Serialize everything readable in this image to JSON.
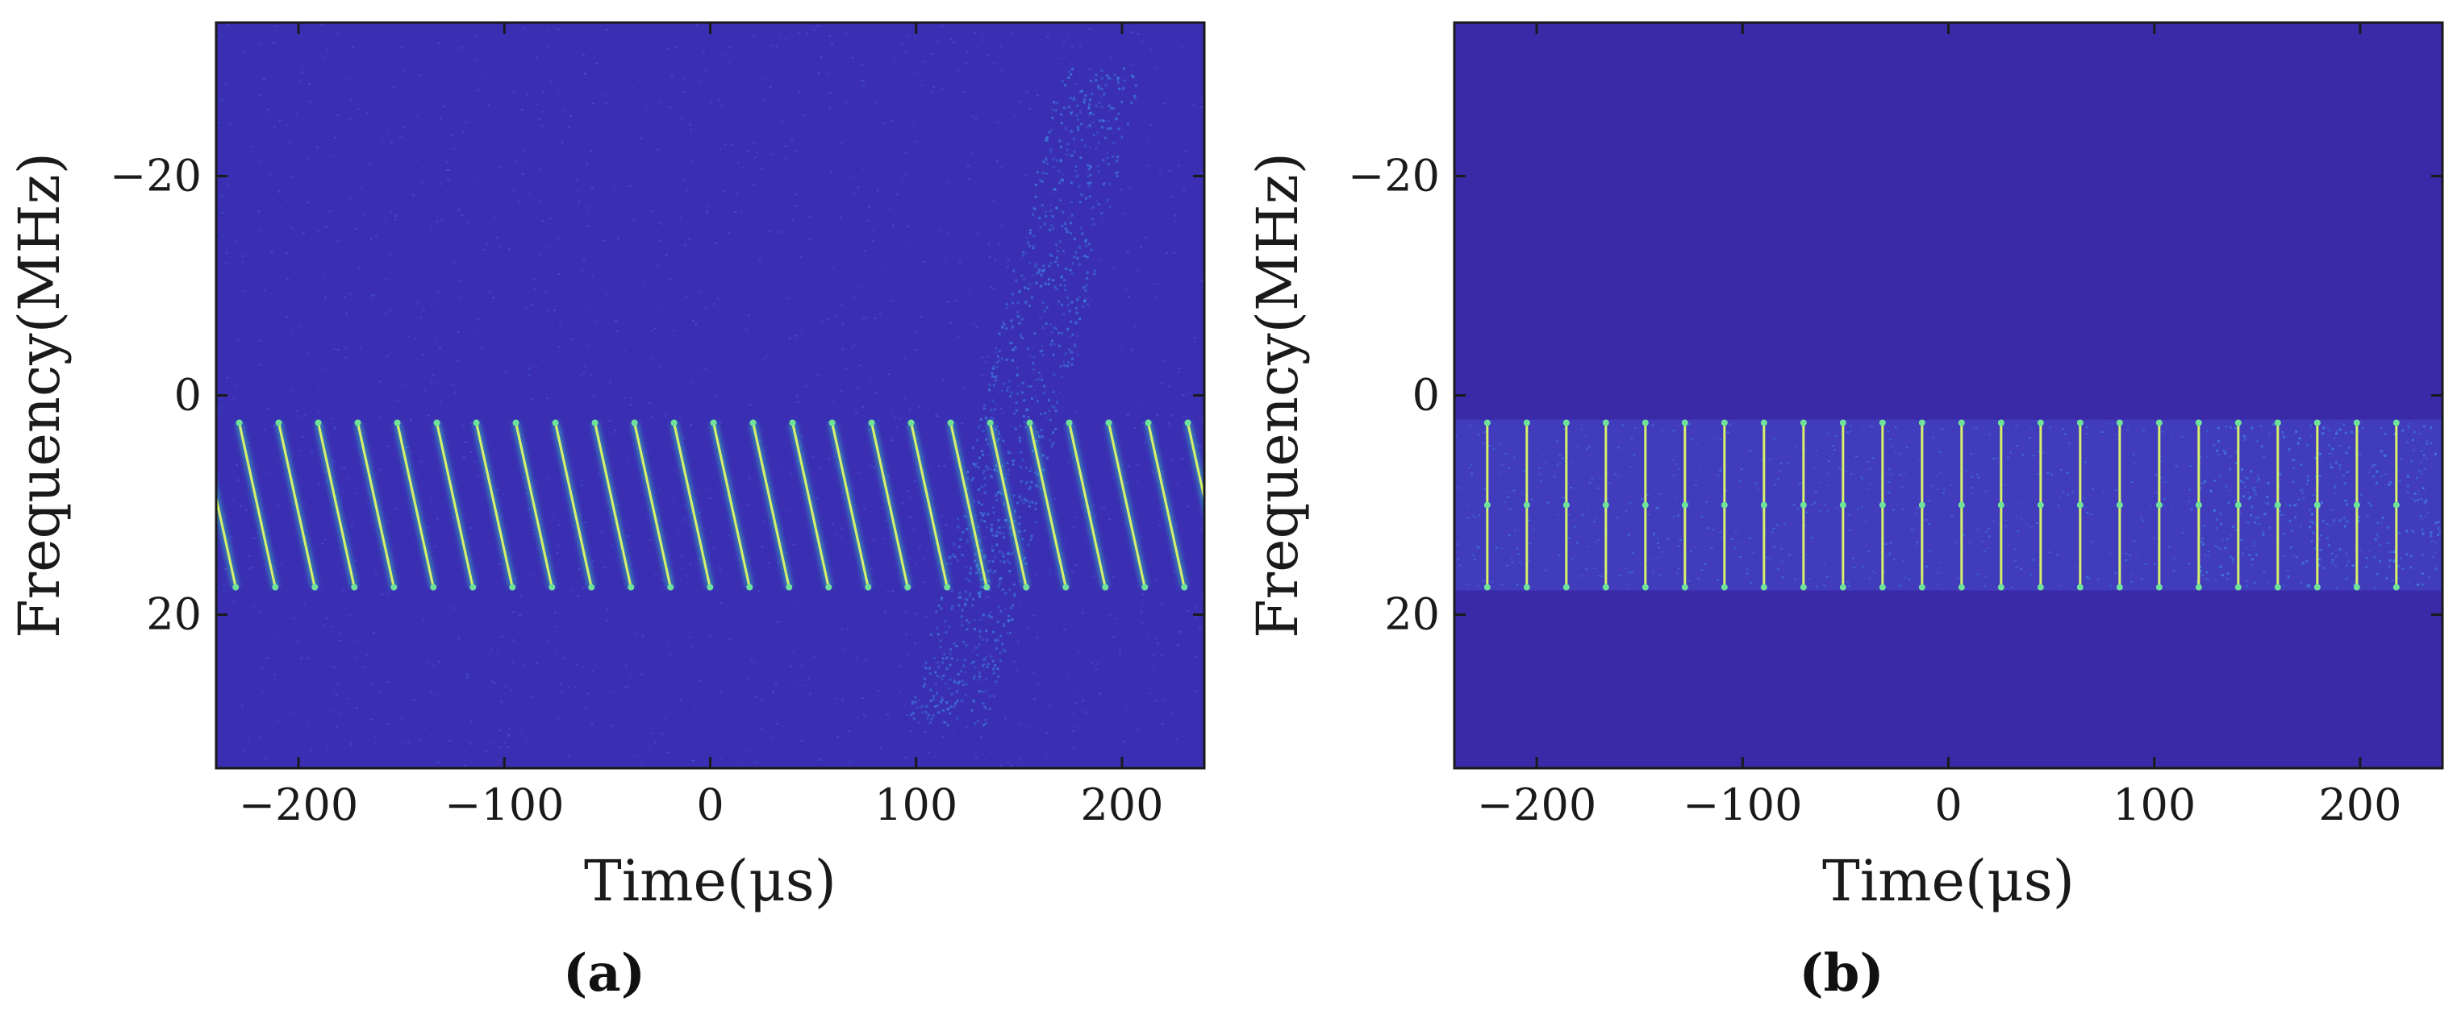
{
  "figure": {
    "panel_labels": [
      "(a)",
      "(b)"
    ]
  },
  "colors": {
    "background_a": "#3a2fb3",
    "background_b": "#3b2aa8",
    "noise_light": "#4a5ee0",
    "noise_bright": "#3f8fe8",
    "line_core": "#d8f06a",
    "line_glow": "#36c7b8",
    "line_mid": "#6fe39a"
  },
  "chart_data": [
    {
      "type": "heatmap",
      "panel": "(a)",
      "xlabel": "Time(μs)",
      "ylabel": "Frequency(MHz)",
      "xlim": [
        -240,
        240
      ],
      "ylim": [
        -34,
        34
      ],
      "y_inverted": true,
      "xticks": [
        -200,
        -100,
        0,
        100,
        200
      ],
      "xtick_labels": [
        "−200",
        "−100",
        "0",
        "100",
        "200"
      ],
      "yticks": [
        -20,
        0,
        20
      ],
      "ytick_labels": [
        "−20",
        "0",
        "20"
      ],
      "grid": false,
      "signal": {
        "kind": "chirp sequence",
        "freq_range_MHz": [
          2.5,
          17.5
        ],
        "period_us": 19.2,
        "chirp_duration_us": 17.5,
        "start_times_us": [
          -248.0,
          -228.8,
          -209.6,
          -190.4,
          -171.2,
          -152.0,
          -132.8,
          -113.6,
          -94.4,
          -75.2,
          -56.0,
          -36.8,
          -17.6,
          1.6,
          20.8,
          40.0,
          59.2,
          78.4,
          97.6,
          116.8,
          136.0,
          155.2,
          174.4,
          193.6,
          212.8,
          232.0
        ]
      },
      "interference": {
        "kind": "wideband sweep",
        "start": {
          "time_us": 115,
          "freq_MHz": 30
        },
        "end": {
          "time_us": 190,
          "freq_MHz": -30
        },
        "noise_region_time_us": [
          100,
          240
        ]
      }
    },
    {
      "type": "heatmap",
      "panel": "(b)",
      "xlabel": "Time(μs)",
      "ylabel": "Frequency(MHz)",
      "xlim": [
        -240,
        240
      ],
      "ylim": [
        -34,
        34
      ],
      "y_inverted": true,
      "xticks": [
        -200,
        -100,
        0,
        100,
        200
      ],
      "xtick_labels": [
        "−200",
        "−100",
        "0",
        "100",
        "200"
      ],
      "yticks": [
        -20,
        0,
        20
      ],
      "ytick_labels": [
        "−20",
        "0",
        "20"
      ],
      "grid": false,
      "signal": {
        "kind": "dechirped impulses",
        "band_MHz": [
          2.5,
          17.5
        ],
        "center_markers_MHz": [
          2.5,
          10,
          17.5
        ],
        "impulse_times_us": [
          -224.0,
          -204.8,
          -185.6,
          -166.4,
          -147.2,
          -128.0,
          -108.8,
          -89.6,
          -70.4,
          -51.2,
          -32.0,
          -12.8,
          6.4,
          25.6,
          44.8,
          64.0,
          83.2,
          102.4,
          121.6,
          140.8,
          160.0,
          179.2,
          198.4,
          217.6
        ]
      },
      "residual_noise_time_us": [
        120,
        240
      ]
    }
  ]
}
